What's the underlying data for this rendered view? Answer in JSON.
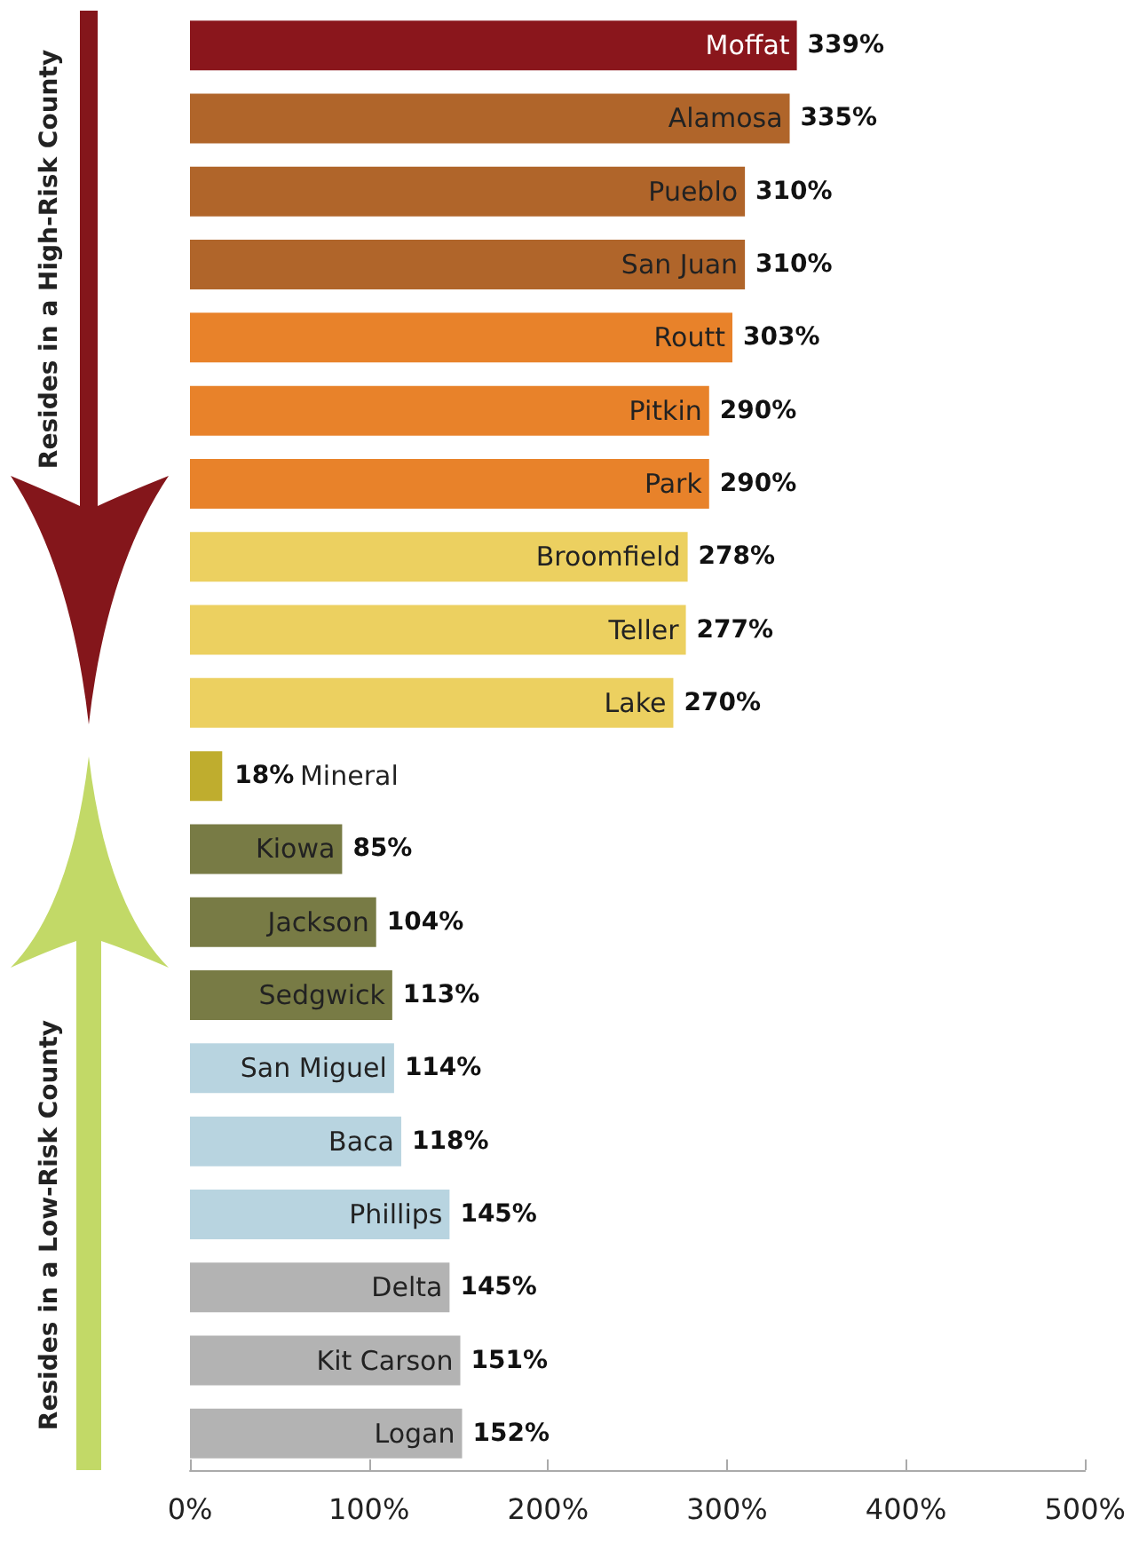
{
  "chart_data": {
    "type": "bar",
    "orientation": "horizontal",
    "categories": [
      "Moffat",
      "Alamosa",
      "Pueblo",
      "San Juan",
      "Routt",
      "Pitkin",
      "Park",
      "Broomfield",
      "Teller",
      "Lake",
      "Mineral",
      "Kiowa",
      "Jackson",
      "Sedgwick",
      "San Miguel",
      "Baca",
      "Phillips",
      "Delta",
      "Kit Carson",
      "Logan"
    ],
    "values": [
      339,
      335,
      310,
      310,
      303,
      290,
      290,
      278,
      277,
      270,
      18,
      85,
      104,
      113,
      114,
      118,
      145,
      145,
      151,
      152
    ],
    "value_labels": [
      "339%",
      "335%",
      "310%",
      "310%",
      "303%",
      "290%",
      "290%",
      "278%",
      "277%",
      "270%",
      "18%",
      "85%",
      "104%",
      "113%",
      "114%",
      "118%",
      "145%",
      "145%",
      "151%",
      "152%"
    ],
    "colors": [
      "#8a161c",
      "#b0652a",
      "#b0652a",
      "#b0652a",
      "#e8822a",
      "#e8822a",
      "#e8822a",
      "#ecd060",
      "#ecd060",
      "#ecd060",
      "#bfad2e",
      "#787b45",
      "#787b45",
      "#787b45",
      "#b8d4e0",
      "#b8d4e0",
      "#b8d4e0",
      "#b3b3b3",
      "#b3b3b3",
      "#b3b3b3"
    ],
    "xlim": [
      0,
      500
    ],
    "xticks": [
      {
        "value": 0,
        "label": "0%"
      },
      {
        "value": 100,
        "label": "100%"
      },
      {
        "value": 200,
        "label": "200%"
      },
      {
        "value": 300,
        "label": "300%"
      },
      {
        "value": 400,
        "label": "400%"
      },
      {
        "value": 500,
        "label": "500%"
      }
    ],
    "annotations": [
      "Resides in a High-Risk County",
      "Resides in a Low-Risk County"
    ],
    "grid": false
  }
}
